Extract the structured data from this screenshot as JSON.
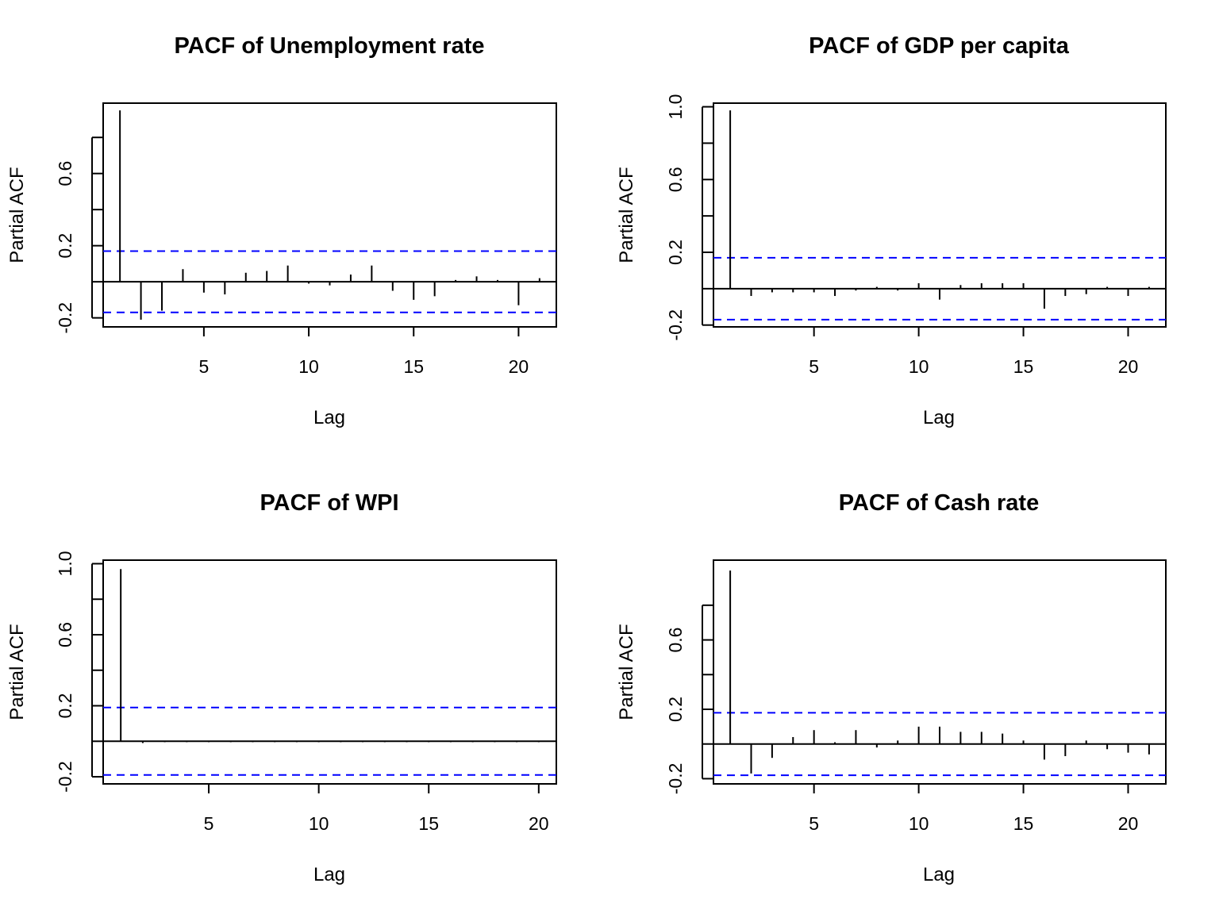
{
  "chart_data": [
    {
      "type": "bar",
      "title": "PACF of Unemployment rate",
      "xlabel": "Lag",
      "ylabel": "Partial ACF",
      "xlim": [
        0.2,
        21.8
      ],
      "ylim": [
        -0.25,
        0.99
      ],
      "xticks": [
        5,
        10,
        15,
        20
      ],
      "yticks": [
        -0.2,
        0.0,
        0.2,
        0.4,
        0.6,
        0.8
      ],
      "ytick_labels": [
        "-0.2",
        "",
        "0.2",
        "",
        "0.6",
        ""
      ],
      "ci": 0.17,
      "ci_color": "#0000ff",
      "x": [
        1,
        2,
        3,
        4,
        5,
        6,
        7,
        8,
        9,
        10,
        11,
        12,
        13,
        14,
        15,
        16,
        17,
        18,
        19,
        20,
        21
      ],
      "values": [
        0.95,
        -0.21,
        -0.16,
        0.07,
        -0.06,
        -0.07,
        0.05,
        0.06,
        0.09,
        -0.01,
        -0.02,
        0.04,
        0.09,
        -0.05,
        -0.1,
        -0.08,
        0.01,
        0.03,
        0.01,
        -0.13,
        0.02
      ]
    },
    {
      "type": "bar",
      "title": "PACF of GDP per capita",
      "xlabel": "Lag",
      "ylabel": "Partial ACF",
      "xlim": [
        0.2,
        21.8
      ],
      "ylim": [
        -0.21,
        1.02
      ],
      "xticks": [
        5,
        10,
        15,
        20
      ],
      "yticks": [
        -0.2,
        0.0,
        0.2,
        0.4,
        0.6,
        0.8,
        1.0
      ],
      "ytick_labels": [
        "-0.2",
        "",
        "0.2",
        "",
        "0.6",
        "",
        "1.0"
      ],
      "ci": 0.17,
      "ci_color": "#0000ff",
      "x": [
        1,
        2,
        3,
        4,
        5,
        6,
        7,
        8,
        9,
        10,
        11,
        12,
        13,
        14,
        15,
        16,
        17,
        18,
        19,
        20,
        21
      ],
      "values": [
        0.98,
        -0.04,
        -0.02,
        -0.02,
        -0.02,
        -0.04,
        -0.01,
        0.01,
        -0.01,
        0.03,
        -0.06,
        0.02,
        0.03,
        0.03,
        0.03,
        -0.11,
        -0.04,
        -0.03,
        0.01,
        -0.04,
        0.01
      ]
    },
    {
      "type": "bar",
      "title": "PACF of WPI",
      "xlabel": "Lag",
      "ylabel": "Partial ACF",
      "xlim": [
        0.2,
        20.8
      ],
      "ylim": [
        -0.24,
        1.02
      ],
      "xticks": [
        5,
        10,
        15,
        20
      ],
      "yticks": [
        -0.2,
        0.0,
        0.2,
        0.4,
        0.6,
        0.8,
        1.0
      ],
      "ytick_labels": [
        "-0.2",
        "",
        "0.2",
        "",
        "0.6",
        "",
        "1.0"
      ],
      "ci": 0.19,
      "ci_color": "#0000ff",
      "x": [
        1,
        2,
        3,
        4,
        5,
        6,
        7,
        8,
        9,
        10,
        11,
        12,
        13,
        14,
        15,
        16,
        17,
        18,
        19,
        20
      ],
      "values": [
        0.97,
        -0.01,
        -0.005,
        -0.005,
        -0.005,
        -0.005,
        -0.005,
        -0.005,
        -0.005,
        -0.005,
        -0.005,
        -0.005,
        -0.005,
        -0.005,
        -0.005,
        -0.005,
        -0.005,
        -0.005,
        -0.005,
        -0.005
      ]
    },
    {
      "type": "bar",
      "title": "PACF of Cash rate",
      "xlabel": "Lag",
      "ylabel": "Partial ACF",
      "xlim": [
        0.2,
        21.8
      ],
      "ylim": [
        -0.23,
        1.06
      ],
      "xticks": [
        5,
        10,
        15,
        20
      ],
      "yticks": [
        -0.2,
        0.0,
        0.2,
        0.4,
        0.6,
        0.8
      ],
      "ytick_labels": [
        "-0.2",
        "",
        "0.2",
        "",
        "0.6",
        ""
      ],
      "ci": 0.18,
      "ci_color": "#0000ff",
      "x": [
        1,
        2,
        3,
        4,
        5,
        6,
        7,
        8,
        9,
        10,
        11,
        12,
        13,
        14,
        15,
        16,
        17,
        18,
        19,
        20,
        21
      ],
      "values": [
        1.0,
        -0.17,
        -0.08,
        0.04,
        0.08,
        0.01,
        0.08,
        -0.02,
        0.02,
        0.1,
        0.1,
        0.07,
        0.07,
        0.06,
        0.02,
        -0.09,
        -0.07,
        0.02,
        -0.03,
        -0.05,
        -0.06
      ]
    }
  ]
}
